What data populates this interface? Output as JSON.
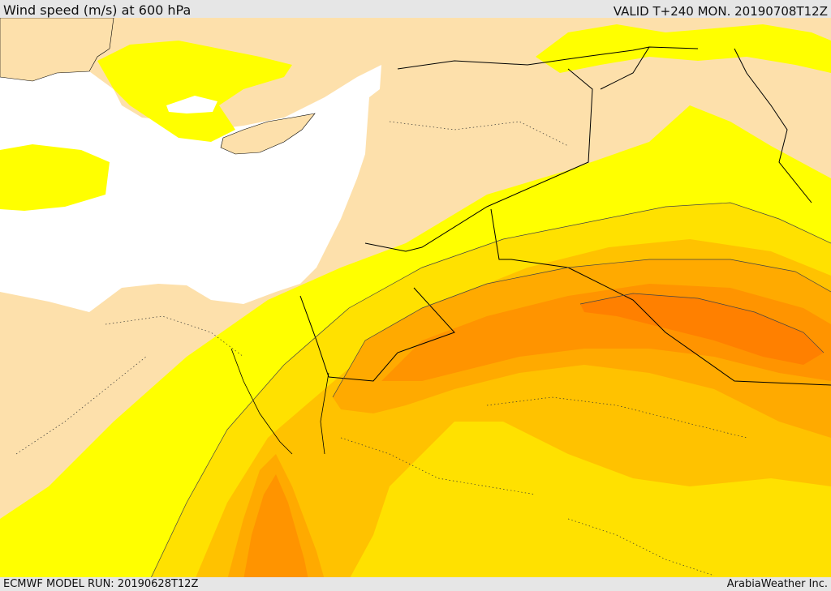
{
  "header": {
    "title": "Wind speed (m/s) at 600 hPa",
    "valid": "VALID T+240 MON. 20190708T12Z"
  },
  "footer": {
    "model_run": "ECMWF MODEL RUN: 20190628T12Z",
    "credit": "ArabiaWeather Inc."
  },
  "colors": {
    "land": "#fde0ab",
    "sea": "#ffffff",
    "band_1": "#ffff00",
    "band_2": "#ffe100",
    "band_3": "#ffc200",
    "band_4": "#ffaa00",
    "band_5": "#ff9400",
    "band_6": "#ff8000",
    "border": "#000000"
  }
}
